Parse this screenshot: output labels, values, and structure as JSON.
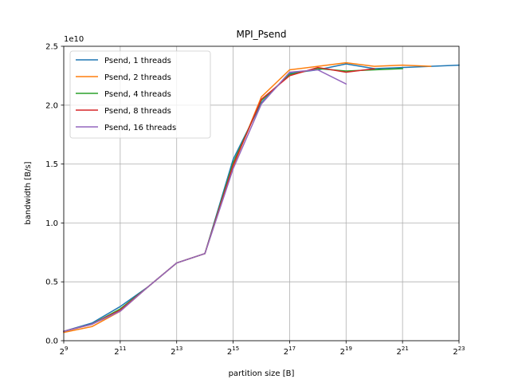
{
  "chart_data": {
    "type": "line",
    "title": "MPI_Psend",
    "xlabel": "partition size [B]",
    "ylabel": "bandwidth [B/s]",
    "x_scale": "log2",
    "xlim": [
      512,
      8388608
    ],
    "x_ticks": [
      512,
      2048,
      8192,
      32768,
      131072,
      524288,
      2097152,
      8388608
    ],
    "x_tick_base": "2",
    "x_tick_exponents": [
      "9",
      "11",
      "13",
      "15",
      "17",
      "19",
      "21",
      "23"
    ],
    "ylim": [
      0,
      2.5
    ],
    "y_ticks": [
      0.0,
      0.5,
      1.0,
      1.5,
      2.0,
      2.5
    ],
    "y_tick_labels": [
      "0.0",
      "0.5",
      "1.0",
      "1.5",
      "2.0",
      "2.5"
    ],
    "y_multiplier": "1e10",
    "grid": true,
    "legend_position": "top-left",
    "series": [
      {
        "name": "Psend, 1 threads",
        "color": "#1f77b4",
        "x": [
          512,
          1024,
          2048,
          4096,
          8192,
          16384,
          32768,
          65536,
          131072,
          262144,
          524288,
          1048576,
          2097152,
          4194304,
          8388608
        ],
        "y": [
          0.08,
          0.15,
          0.29,
          0.46,
          0.66,
          0.74,
          1.54,
          2.02,
          2.27,
          2.3,
          2.35,
          2.31,
          2.32,
          2.33,
          2.34
        ]
      },
      {
        "name": "Psend, 2 threads",
        "color": "#ff7f0e",
        "x": [
          512,
          1024,
          2048,
          4096,
          8192,
          16384,
          32768,
          65536,
          131072,
          262144,
          524288,
          1048576,
          2097152,
          4194304
        ],
        "y": [
          0.07,
          0.12,
          0.25,
          0.46,
          0.66,
          0.74,
          1.48,
          2.07,
          2.3,
          2.33,
          2.36,
          2.33,
          2.34,
          2.33
        ]
      },
      {
        "name": "Psend, 4 threads",
        "color": "#2ca02c",
        "x": [
          512,
          1024,
          2048,
          4096,
          8192,
          16384,
          32768,
          65536,
          131072,
          262144,
          524288,
          1048576,
          2097152
        ],
        "y": [
          0.08,
          0.14,
          0.27,
          0.46,
          0.66,
          0.74,
          1.51,
          2.04,
          2.26,
          2.31,
          2.29,
          2.3,
          2.31
        ]
      },
      {
        "name": "Psend, 8 threads",
        "color": "#d62728",
        "x": [
          512,
          1024,
          2048,
          4096,
          8192,
          16384,
          32768,
          65536,
          131072,
          262144,
          524288,
          1048576
        ],
        "y": [
          0.08,
          0.14,
          0.26,
          0.46,
          0.66,
          0.74,
          1.49,
          2.05,
          2.25,
          2.32,
          2.28,
          2.31
        ]
      },
      {
        "name": "Psend, 16 threads",
        "color": "#9467bd",
        "x": [
          512,
          1024,
          2048,
          4096,
          8192,
          16384,
          32768,
          65536,
          131072,
          262144,
          524288
        ],
        "y": [
          0.08,
          0.14,
          0.25,
          0.46,
          0.66,
          0.74,
          1.46,
          2.01,
          2.28,
          2.3,
          2.18
        ]
      }
    ]
  }
}
